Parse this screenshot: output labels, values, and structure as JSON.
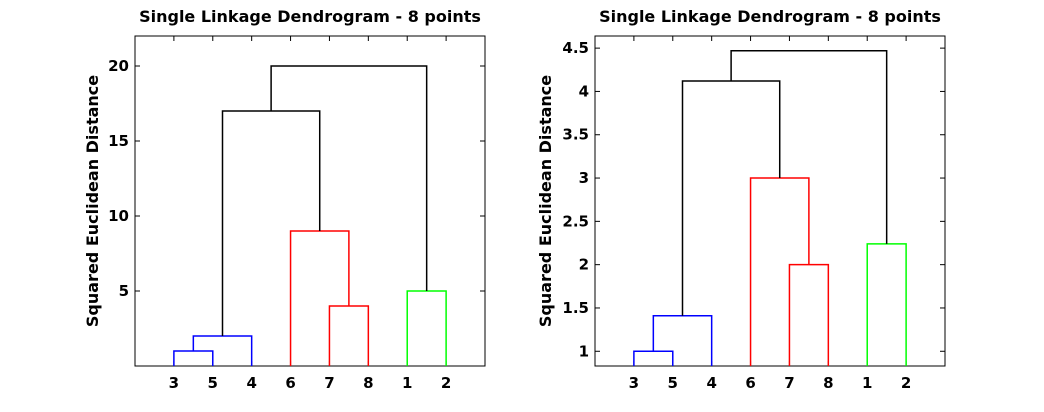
{
  "chart_data": [
    {
      "type": "dendrogram",
      "title": "Single Linkage Dendrogram - 8 points",
      "xlabel": "",
      "ylabel": "Squared Euclidean Distance",
      "leaf_order": [
        "3",
        "5",
        "4",
        "6",
        "7",
        "8",
        "1",
        "2"
      ],
      "ylim": [
        0,
        22
      ],
      "yticks": [
        5,
        10,
        15,
        20
      ],
      "ytick_labels": [
        "5",
        "10",
        "15",
        "20"
      ],
      "links": [
        {
          "left": "3",
          "right": "5",
          "height": 1,
          "color": "#0000ff"
        },
        {
          "left": "(3,5)",
          "right": "4",
          "height": 2,
          "color": "#0000ff"
        },
        {
          "left": "7",
          "right": "8",
          "height": 4,
          "color": "#ff0000"
        },
        {
          "left": "1",
          "right": "2",
          "height": 5,
          "color": "#00ff00"
        },
        {
          "left": "6",
          "right": "(7,8)",
          "height": 9,
          "color": "#ff0000"
        },
        {
          "left": "(3,5,4)",
          "right": "(6,7,8)",
          "height": 17,
          "color": "#000000"
        },
        {
          "left": "(3,5,4,6,7,8)",
          "right": "(1,2)",
          "height": 20,
          "color": "#000000"
        }
      ]
    },
    {
      "type": "dendrogram",
      "title": "Single Linkage Dendrogram - 8 points",
      "xlabel": "",
      "ylabel": "Squared Euclidean Distance",
      "leaf_order": [
        "3",
        "5",
        "4",
        "6",
        "7",
        "8",
        "1",
        "2"
      ],
      "ylim": [
        0.83,
        4.64
      ],
      "yticks": [
        1,
        1.5,
        2,
        2.5,
        3,
        3.5,
        4,
        4.5
      ],
      "ytick_labels": [
        "1",
        "1.5",
        "2",
        "2.5",
        "3",
        "3.5",
        "4",
        "4.5"
      ],
      "links": [
        {
          "left": "3",
          "right": "5",
          "height": 1.0,
          "color": "#0000ff"
        },
        {
          "left": "(3,5)",
          "right": "4",
          "height": 1.41,
          "color": "#0000ff"
        },
        {
          "left": "7",
          "right": "8",
          "height": 2.0,
          "color": "#ff0000"
        },
        {
          "left": "1",
          "right": "2",
          "height": 2.24,
          "color": "#00ff00"
        },
        {
          "left": "6",
          "right": "(7,8)",
          "height": 3.0,
          "color": "#ff0000"
        },
        {
          "left": "(3,5,4)",
          "right": "(6,7,8)",
          "height": 4.12,
          "color": "#000000"
        },
        {
          "left": "(3,5,4,6,7,8)",
          "right": "(1,2)",
          "height": 4.47,
          "color": "#000000"
        }
      ]
    }
  ]
}
